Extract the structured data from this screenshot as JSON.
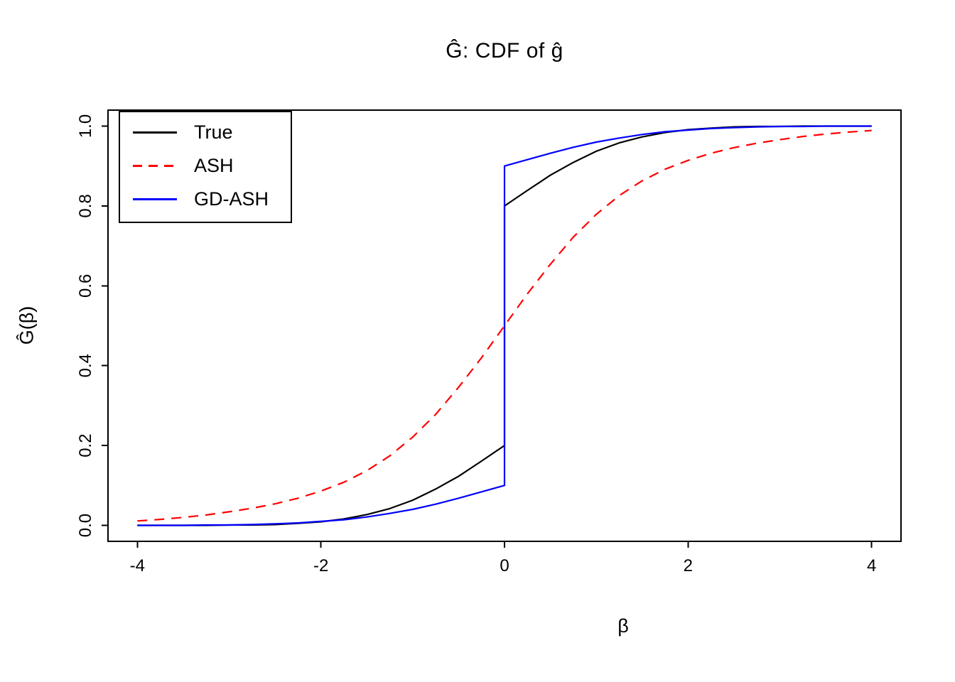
{
  "chart_data": {
    "type": "line",
    "title": "Ĝ: CDF of ĝ",
    "xlabel": "β",
    "ylabel": "Ĝ(β)",
    "axes": {
      "xlim": [
        -4,
        4
      ],
      "ylim": [
        0,
        1
      ],
      "pad": 0.04,
      "xticks": [
        -4,
        -2,
        0,
        2,
        4
      ],
      "xtick_labels": [
        "-4",
        "-2",
        "0",
        "2",
        "4"
      ],
      "yticks": [
        0,
        0.2,
        0.4,
        0.6,
        0.8,
        1.0
      ],
      "ytick_labels": [
        "0.0",
        "0.2",
        "0.4",
        "0.6",
        "0.8",
        "1.0"
      ],
      "grid": false
    },
    "legend": {
      "position": "topleft"
    },
    "series": [
      {
        "name": "True",
        "color": "#000000",
        "linetype": "solid",
        "points": [
          [
            -4,
            0.0
          ],
          [
            -3.75,
            0.0
          ],
          [
            -3.5,
            0.0
          ],
          [
            -3.25,
            0.0
          ],
          [
            -3,
            0.001
          ],
          [
            -2.75,
            0.001
          ],
          [
            -2.5,
            0.002
          ],
          [
            -2.25,
            0.005
          ],
          [
            -2,
            0.009
          ],
          [
            -1.75,
            0.016
          ],
          [
            -1.5,
            0.027
          ],
          [
            -1.25,
            0.042
          ],
          [
            -1,
            0.063
          ],
          [
            -0.75,
            0.091
          ],
          [
            -0.5,
            0.123
          ],
          [
            -0.25,
            0.161
          ],
          [
            0,
            0.2
          ],
          [
            0,
            0.8
          ],
          [
            0.25,
            0.839
          ],
          [
            0.5,
            0.877
          ],
          [
            0.75,
            0.909
          ],
          [
            1,
            0.937
          ],
          [
            1.25,
            0.958
          ],
          [
            1.5,
            0.973
          ],
          [
            1.75,
            0.984
          ],
          [
            2,
            0.991
          ],
          [
            2.25,
            0.995
          ],
          [
            2.5,
            0.998
          ],
          [
            2.75,
            0.999
          ],
          [
            3,
            0.999
          ],
          [
            3.25,
            1.0
          ],
          [
            3.5,
            1.0
          ],
          [
            3.75,
            1.0
          ],
          [
            4,
            1.0
          ]
        ]
      },
      {
        "name": "ASH",
        "color": "#FF0000",
        "linetype": "dashed",
        "points": [
          [
            -4,
            0.011
          ],
          [
            -3.75,
            0.015
          ],
          [
            -3.5,
            0.02
          ],
          [
            -3.25,
            0.026
          ],
          [
            -3,
            0.034
          ],
          [
            -2.75,
            0.043
          ],
          [
            -2.5,
            0.054
          ],
          [
            -2.25,
            0.068
          ],
          [
            -2,
            0.086
          ],
          [
            -1.75,
            0.108
          ],
          [
            -1.5,
            0.137
          ],
          [
            -1.25,
            0.174
          ],
          [
            -1,
            0.221
          ],
          [
            -0.75,
            0.278
          ],
          [
            -0.5,
            0.346
          ],
          [
            -0.25,
            0.42
          ],
          [
            0,
            0.5
          ],
          [
            0.25,
            0.58
          ],
          [
            0.5,
            0.654
          ],
          [
            0.75,
            0.722
          ],
          [
            1,
            0.779
          ],
          [
            1.25,
            0.826
          ],
          [
            1.5,
            0.863
          ],
          [
            1.75,
            0.892
          ],
          [
            2,
            0.914
          ],
          [
            2.25,
            0.932
          ],
          [
            2.5,
            0.946
          ],
          [
            2.75,
            0.957
          ],
          [
            3,
            0.966
          ],
          [
            3.25,
            0.974
          ],
          [
            3.5,
            0.98
          ],
          [
            3.75,
            0.985
          ],
          [
            4,
            0.989
          ]
        ]
      },
      {
        "name": "GD-ASH",
        "color": "#0000FF",
        "linetype": "solid",
        "points": [
          [
            -4,
            0.0
          ],
          [
            -3.75,
            0.0
          ],
          [
            -3.5,
            0.0
          ],
          [
            -3.25,
            0.001
          ],
          [
            -3,
            0.001
          ],
          [
            -2.75,
            0.002
          ],
          [
            -2.5,
            0.004
          ],
          [
            -2.25,
            0.006
          ],
          [
            -2,
            0.01
          ],
          [
            -1.75,
            0.014
          ],
          [
            -1.5,
            0.021
          ],
          [
            -1.25,
            0.03
          ],
          [
            -1,
            0.04
          ],
          [
            -0.75,
            0.053
          ],
          [
            -0.5,
            0.068
          ],
          [
            -0.25,
            0.084
          ],
          [
            0,
            0.1
          ],
          [
            0,
            0.9
          ],
          [
            0.25,
            0.916
          ],
          [
            0.5,
            0.932
          ],
          [
            0.75,
            0.947
          ],
          [
            1,
            0.96
          ],
          [
            1.25,
            0.97
          ],
          [
            1.5,
            0.979
          ],
          [
            1.75,
            0.986
          ],
          [
            2,
            0.99
          ],
          [
            2.25,
            0.994
          ],
          [
            2.5,
            0.996
          ],
          [
            2.75,
            0.998
          ],
          [
            3,
            0.999
          ],
          [
            3.25,
            0.999
          ],
          [
            3.5,
            1.0
          ],
          [
            3.75,
            1.0
          ],
          [
            4,
            1.0
          ]
        ]
      }
    ]
  }
}
